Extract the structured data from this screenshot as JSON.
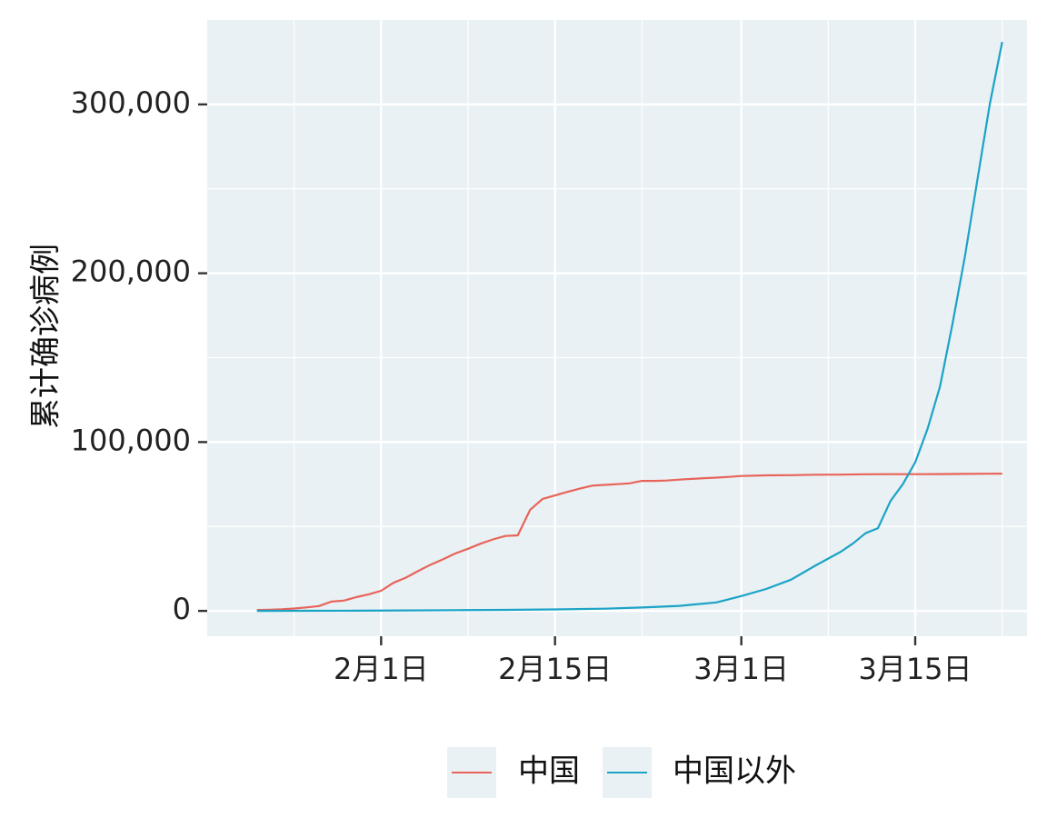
{
  "chart_data": {
    "type": "line",
    "title": "",
    "xlabel": "",
    "ylabel": "累计确诊病例",
    "x_tick_labels": [
      "2月1日",
      "2月15日",
      "3月1日",
      "3月15日"
    ],
    "y_tick_labels": [
      "0",
      "100,000",
      "200,000",
      "300,000"
    ],
    "ylim": [
      -15000,
      350000
    ],
    "grid": true,
    "legend_position": "bottom",
    "colors": {
      "china": "#e8645a",
      "outside": "#1ba3c6",
      "panel_bg": "#e9f1f4",
      "grid": "#ffffff"
    },
    "series": [
      {
        "name": "中国",
        "color": "#e8645a",
        "x": [
          "2020-01-22",
          "2020-01-23",
          "2020-01-24",
          "2020-01-25",
          "2020-01-26",
          "2020-01-27",
          "2020-01-28",
          "2020-01-29",
          "2020-01-30",
          "2020-01-31",
          "2020-02-01",
          "2020-02-02",
          "2020-02-03",
          "2020-02-04",
          "2020-02-05",
          "2020-02-06",
          "2020-02-07",
          "2020-02-08",
          "2020-02-09",
          "2020-02-10",
          "2020-02-11",
          "2020-02-12",
          "2020-02-13",
          "2020-02-14",
          "2020-02-15",
          "2020-02-16",
          "2020-02-17",
          "2020-02-18",
          "2020-02-19",
          "2020-02-20",
          "2020-02-21",
          "2020-02-22",
          "2020-02-23",
          "2020-02-24",
          "2020-02-25",
          "2020-02-26",
          "2020-02-27",
          "2020-02-28",
          "2020-02-29",
          "2020-03-01",
          "2020-03-03",
          "2020-03-05",
          "2020-03-07",
          "2020-03-09",
          "2020-03-11",
          "2020-03-13",
          "2020-03-15",
          "2020-03-17",
          "2020-03-19",
          "2020-03-21",
          "2020-03-22"
        ],
        "y": [
          548,
          643,
          920,
          1406,
          2075,
          2877,
          5509,
          6087,
          8141,
          9802,
          11891,
          16630,
          19716,
          23707,
          27440,
          30587,
          34110,
          36814,
          39829,
          42354,
          44386,
          44759,
          59895,
          66358,
          68413,
          70513,
          72434,
          74211,
          74619,
          75077,
          75550,
          77001,
          77022,
          77241,
          77754,
          78166,
          78600,
          78928,
          79356,
          79932,
          80270,
          80422,
          80652,
          80735,
          80921,
          80977,
          81003,
          81058,
          81156,
          81250,
          81305
        ]
      },
      {
        "name": "中国以外",
        "color": "#1ba3c6",
        "x": [
          "2020-01-22",
          "2020-01-26",
          "2020-01-30",
          "2020-02-03",
          "2020-02-07",
          "2020-02-11",
          "2020-02-15",
          "2020-02-19",
          "2020-02-22",
          "2020-02-25",
          "2020-02-28",
          "2020-03-01",
          "2020-03-03",
          "2020-03-05",
          "2020-03-07",
          "2020-03-09",
          "2020-03-10",
          "2020-03-11",
          "2020-03-12",
          "2020-03-13",
          "2020-03-14",
          "2020-03-15",
          "2020-03-16",
          "2020-03-17",
          "2020-03-18",
          "2020-03-19",
          "2020-03-20",
          "2020-03-21",
          "2020-03-22"
        ],
        "y": [
          7,
          50,
          150,
          300,
          450,
          600,
          900,
          1300,
          2000,
          3000,
          5000,
          8800,
          13000,
          18500,
          27000,
          35000,
          40000,
          46000,
          49000,
          65000,
          75000,
          88000,
          108000,
          133000,
          170000,
          210000,
          255000,
          300000,
          337000
        ]
      }
    ]
  }
}
